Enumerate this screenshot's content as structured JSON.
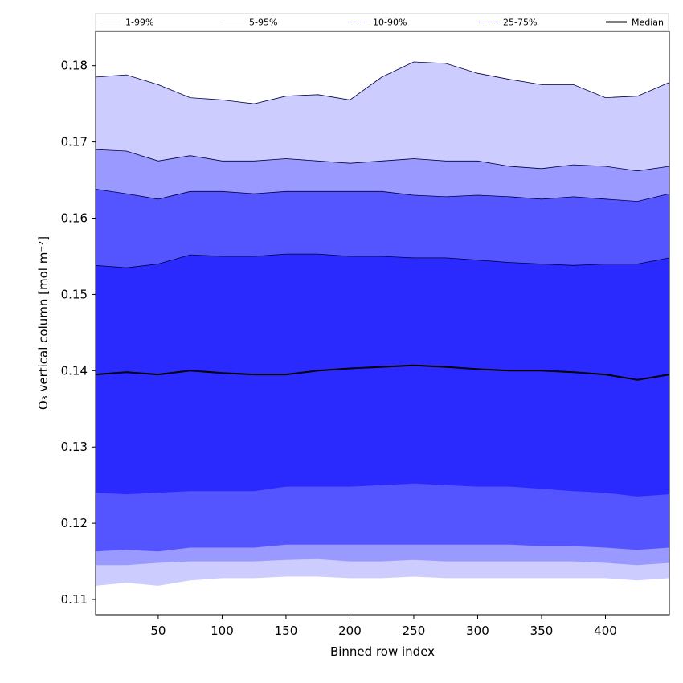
{
  "chart_data": {
    "type": "area",
    "title": "",
    "xlabel": "Binned row index",
    "ylabel": "O₃ vertical column [mol m⁻²]",
    "xlim": [
      1,
      450
    ],
    "ylim": [
      0.108,
      0.1845
    ],
    "xticks": [
      50,
      100,
      150,
      200,
      250,
      300,
      350,
      400
    ],
    "yticks": [
      0.11,
      0.12,
      0.13,
      0.14,
      0.15,
      0.16,
      0.17,
      0.18
    ],
    "ytick_labels": [
      "0.11",
      "0.12",
      "0.13",
      "0.14",
      "0.15",
      "0.16",
      "0.17",
      "0.18"
    ],
    "grid": false,
    "legend_position": "top",
    "x": [
      1,
      25,
      50,
      75,
      100,
      125,
      150,
      175,
      200,
      225,
      250,
      275,
      300,
      325,
      350,
      375,
      400,
      425,
      450
    ],
    "series": [
      {
        "name": "1-99%",
        "color": "#ccccff",
        "line_color": "#dddddd",
        "line_style": "solid",
        "lower": [
          0.1118,
          0.1122,
          0.1118,
          0.1125,
          0.1128,
          0.1128,
          0.113,
          0.113,
          0.1128,
          0.1128,
          0.113,
          0.1128,
          0.1128,
          0.1128,
          0.1128,
          0.1128,
          0.1128,
          0.1125,
          0.1128
        ],
        "upper": [
          0.1785,
          0.1788,
          0.1775,
          0.1758,
          0.1755,
          0.175,
          0.176,
          0.1762,
          0.1755,
          0.1785,
          0.1805,
          0.1803,
          0.179,
          0.1782,
          0.1775,
          0.1775,
          0.1758,
          0.176,
          0.1778
        ]
      },
      {
        "name": "5-95%",
        "color": "#9999ff",
        "line_color": "#aaaaaa",
        "line_style": "solid",
        "lower": [
          0.1145,
          0.1145,
          0.1148,
          0.115,
          0.115,
          0.115,
          0.1152,
          0.1153,
          0.115,
          0.115,
          0.1152,
          0.115,
          0.115,
          0.115,
          0.115,
          0.115,
          0.1148,
          0.1145,
          0.1148
        ],
        "upper": [
          0.169,
          0.1688,
          0.1675,
          0.1682,
          0.1675,
          0.1675,
          0.1678,
          0.1675,
          0.1672,
          0.1675,
          0.1678,
          0.1675,
          0.1675,
          0.1668,
          0.1665,
          0.167,
          0.1668,
          0.1662,
          0.1668
        ]
      },
      {
        "name": "10-90%",
        "color": "#5555ff",
        "line_color": "#8888ff",
        "line_style": "dashed",
        "lower": [
          0.1163,
          0.1165,
          0.1163,
          0.1168,
          0.1168,
          0.1168,
          0.1172,
          0.1172,
          0.1172,
          0.1172,
          0.1172,
          0.1172,
          0.1172,
          0.1172,
          0.117,
          0.117,
          0.1168,
          0.1165,
          0.1168
        ],
        "upper": [
          0.1638,
          0.1632,
          0.1625,
          0.1635,
          0.1635,
          0.1632,
          0.1635,
          0.1635,
          0.1635,
          0.1635,
          0.163,
          0.1628,
          0.163,
          0.1628,
          0.1625,
          0.1628,
          0.1625,
          0.1622,
          0.1632
        ]
      },
      {
        "name": "25-75%",
        "color": "#2a2aff",
        "line_color": "#5555ff",
        "line_style": "dashed",
        "lower": [
          0.124,
          0.1238,
          0.124,
          0.1242,
          0.1242,
          0.1242,
          0.1248,
          0.1248,
          0.1248,
          0.125,
          0.1252,
          0.125,
          0.1248,
          0.1248,
          0.1245,
          0.1242,
          0.124,
          0.1235,
          0.1238
        ],
        "upper": [
          0.1538,
          0.1535,
          0.154,
          0.1552,
          0.155,
          0.155,
          0.1553,
          0.1553,
          0.155,
          0.155,
          0.1548,
          0.1548,
          0.1545,
          0.1542,
          0.154,
          0.1538,
          0.154,
          0.154,
          0.1548
        ]
      }
    ],
    "median": {
      "name": "Median",
      "color": "#000000",
      "values": [
        0.1395,
        0.1398,
        0.1395,
        0.14,
        0.1397,
        0.1395,
        0.1395,
        0.14,
        0.1403,
        0.1405,
        0.1407,
        0.1405,
        0.1402,
        0.14,
        0.14,
        0.1398,
        0.1395,
        0.1388,
        0.1395
      ]
    }
  }
}
